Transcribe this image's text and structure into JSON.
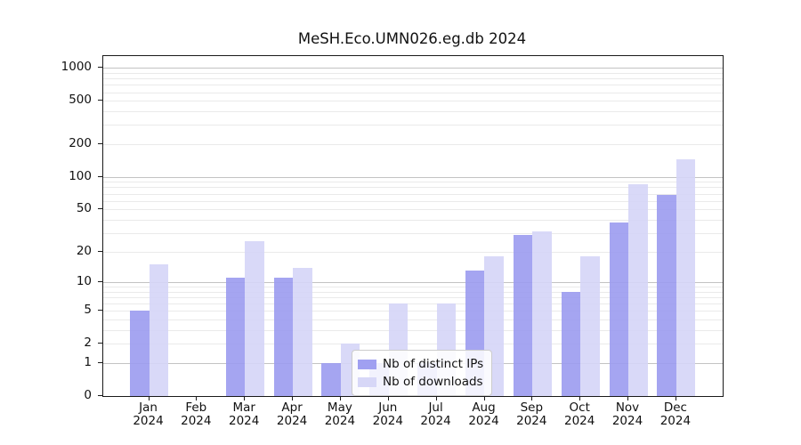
{
  "chart_data": {
    "type": "bar",
    "title": "MeSH.Eco.UMN026.eg.db 2024",
    "categories": [
      "Jan",
      "Feb",
      "Mar",
      "Apr",
      "May",
      "Jun",
      "Jul",
      "Aug",
      "Sep",
      "Oct",
      "Nov",
      "Dec"
    ],
    "x_tick_year": "2024",
    "series": [
      {
        "name": "Nb of distinct IPs",
        "color": "#9b9bf0",
        "values": [
          5,
          0,
          11,
          11,
          1,
          1,
          1,
          13,
          29,
          8,
          38,
          68
        ]
      },
      {
        "name": "Nb of downloads",
        "color": "#d5d5f7",
        "values": [
          15,
          0,
          25,
          14,
          2,
          6,
          6,
          18,
          31,
          18,
          85,
          145
        ]
      }
    ],
    "yscale": "log1p",
    "yticks": [
      0,
      1,
      2,
      5,
      10,
      20,
      50,
      100,
      200,
      500,
      1000
    ],
    "ylim": [
      0,
      1282
    ],
    "grid": "on",
    "legend_position": "lower-center"
  },
  "legend": {
    "items": [
      {
        "label": "Nb of distinct IPs"
      },
      {
        "label": "Nb of downloads"
      }
    ]
  },
  "colors": {
    "bar_distinct_ips": "#9b9bf0",
    "bar_downloads": "#d5d5f7",
    "grid_major": "#c3c3c3",
    "grid_minor": "#eaeaea",
    "axis": "#1a1a1a",
    "background": "#ffffff"
  }
}
